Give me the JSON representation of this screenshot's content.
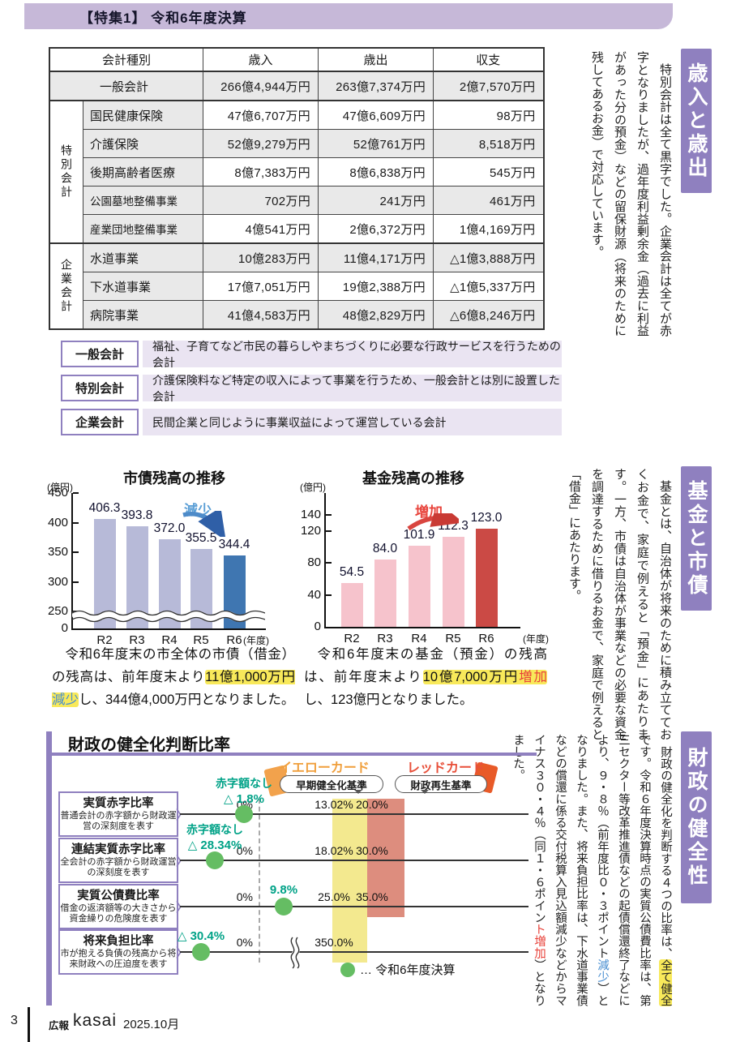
{
  "header": {
    "title": "【特集1】 令和6年度決算"
  },
  "table": {
    "headers": {
      "kind": "会計種別",
      "revenue": "歳入",
      "expenditure": "歳出",
      "balance": "収支"
    },
    "groups": {
      "special": "特別会計",
      "enterprise": "企業会計"
    },
    "rows": [
      {
        "name": "一般会計",
        "in": "266億4,944万円",
        "out": "263億7,374万円",
        "bal": "2億7,570万円"
      },
      {
        "name": "国民健康保険",
        "in": "47億6,707万円",
        "out": "47億6,609万円",
        "bal": "98万円"
      },
      {
        "name": "介護保険",
        "in": "52億9,279万円",
        "out": "52億761万円",
        "bal": "8,518万円"
      },
      {
        "name": "後期高齢者医療",
        "in": "8億7,383万円",
        "out": "8億6,838万円",
        "bal": "545万円"
      },
      {
        "name": "公園墓地整備事業",
        "in": "702万円",
        "out": "241万円",
        "bal": "461万円"
      },
      {
        "name": "産業団地整備事業",
        "in": "4億541万円",
        "out": "2億6,372万円",
        "bal": "1億4,169万円"
      },
      {
        "name": "水道事業",
        "in": "10億283万円",
        "out": "11億4,171万円",
        "bal": "△1億3,888万円"
      },
      {
        "name": "下水道事業",
        "in": "17億7,051万円",
        "out": "19億2,388万円",
        "bal": "△1億5,337万円"
      },
      {
        "name": "病院事業",
        "in": "41億4,583万円",
        "out": "48億2,829万円",
        "bal": "△6億8,246万円"
      }
    ]
  },
  "definitions": [
    {
      "label": "一般会計",
      "desc": "福祉、子育てなど市民の暮らしやまちづくりに必要な行政サービスを行うための会計"
    },
    {
      "label": "特別会計",
      "desc": "介護保険料など特定の収入によって事業を行うため、一般会計とは別に設置した会計"
    },
    {
      "label": "企業会計",
      "desc": "民間企業と同じように事業収益によって運営している会計"
    }
  ],
  "side": {
    "s1": {
      "title": "歳入と歳出",
      "body": "特別会計は全て黒字でした。企業会計は全てが赤字となりましたが、過年度利益剰余金（過去に利益があった分の預金）などの留保財源（将来のために残してあるお金）で対応しています。"
    },
    "s2": {
      "title": "基金と市債",
      "body": "基金とは、自治体が将来のために積み立てておくお金で、家庭で例えると「預金」にあたります。一方、市債は自治体が事業などの必要な資金を調達するために借りるお金で、家庭で例えると「借金」にあたります。"
    },
    "s3": {
      "title": "財政の健全性",
      "pre": "財政の健全化を判断する４つの比率は、",
      "hl": "全て健全",
      "mid": "です。令和６年度決算時点の実質公債費比率は、第三セクター等改革推進債などの起債償還終了などにより、９・８％（前年度比０・３ポイント",
      "dec": "減少",
      "mid2": "）となりました。また、将来負担比率は、下水道事業債などの償還に係る交付税算入見込額減少などからマイナス３０・４％（同１・６ポイン",
      "inc": "ト増加",
      "post": "）となりました。"
    }
  },
  "captions": {
    "bond": {
      "pre": "令和6年度末の市全体の市債（借金）の残高は、前年度末より",
      "hl_text": "11億1,000万円",
      "hl_word": "減少",
      "post": "し、344億4,000万円となりました。"
    },
    "fund": {
      "pre": "令和6年度末の基金（預金）の残高は、前年度末より",
      "hl_text": "10億7,000万円",
      "hl_word": "増加",
      "post": "し、123億円となりました。"
    }
  },
  "chart_data": [
    {
      "id": "municipal-bond-balance",
      "type": "bar",
      "title": "市債残高の推移",
      "unit_label": "(億円)",
      "xlabel": "(年度)",
      "categories": [
        "R2",
        "R3",
        "R4",
        "R5",
        "R6"
      ],
      "values": [
        406.3,
        393.8,
        372.0,
        355.5,
        344.4
      ],
      "yticks": [
        450,
        400,
        350,
        300,
        250,
        0
      ],
      "ylim": [
        0,
        450
      ],
      "axis_break": true,
      "annotation": "減少",
      "trend": "decrease",
      "bar_color": "#b7bad8",
      "highlight_color": "#3f76b1",
      "legend_position": "none",
      "grid": false
    },
    {
      "id": "fund-balance",
      "type": "bar",
      "title": "基金残高の推移",
      "unit_label": "(億円)",
      "xlabel": "(年度)",
      "categories": [
        "R2",
        "R3",
        "R4",
        "R5",
        "R6"
      ],
      "values": [
        54.5,
        84.0,
        101.9,
        112.3,
        123.0
      ],
      "yticks": [
        140,
        120,
        80,
        40,
        0
      ],
      "ylim": [
        0,
        150
      ],
      "axis_break": false,
      "annotation": "増加",
      "trend": "increase",
      "bar_color": "#f6c3cc",
      "highlight_color": "#cb4a45",
      "legend_position": "none",
      "grid": false
    },
    {
      "id": "fiscal-soundness",
      "type": "indicator",
      "title": "財政の健全化判断比率",
      "legend": "… 令和6年度決算",
      "yellow_card": {
        "label": "イエローカード",
        "sub": "早期健全化基準",
        "color": "#f2a24c"
      },
      "red_card": {
        "label": "レッドカード",
        "sub": "財政再生基準",
        "color": "#e85a28"
      },
      "rows": [
        {
          "name": "実質赤字比率",
          "desc": "普通会計の赤字額から財政運営の深刻度を表す",
          "note": "赤字額なし",
          "value": "△ 1.8%",
          "zero": "0%",
          "yellow": "13.02%",
          "red": "20.0%"
        },
        {
          "name": "連結実質赤字比率",
          "desc": "全会計の赤字額から財政運営の深刻度を表す",
          "note": "赤字額なし",
          "value": "△ 28.34%",
          "zero": "0%",
          "yellow": "18.02%",
          "red": "30.0%"
        },
        {
          "name": "実質公債費比率",
          "desc": "借金の返済額等の大きさから資金繰りの危険度を表す",
          "note": "",
          "value": "9.8%",
          "zero": "0%",
          "yellow": "25.0%",
          "red": "35.0%"
        },
        {
          "name": "将来負担比率",
          "desc": "市が抱える負債の残高から将来財政への圧迫度を表す",
          "note": "",
          "value": "△ 30.4%",
          "zero": "0%",
          "yellow": "350.0%",
          "red": ""
        }
      ]
    }
  ],
  "colors": {
    "accent_purple": "#8f80bf",
    "header_band": "#c6b8d8",
    "definition_strip": "#eae4f2",
    "highlight_yellow": "#f8e95a",
    "teal_value": "#00a287",
    "dot_green": "#65bd63",
    "yellow_band": "#f3e98f",
    "red_band": "#dd8d7e",
    "decrease_blue": "#4a8fd1",
    "increase_red": "#e8423a"
  },
  "footer": {
    "page": "3",
    "brand_small": "広報",
    "brand": "kasai",
    "date": "2025.10月"
  }
}
